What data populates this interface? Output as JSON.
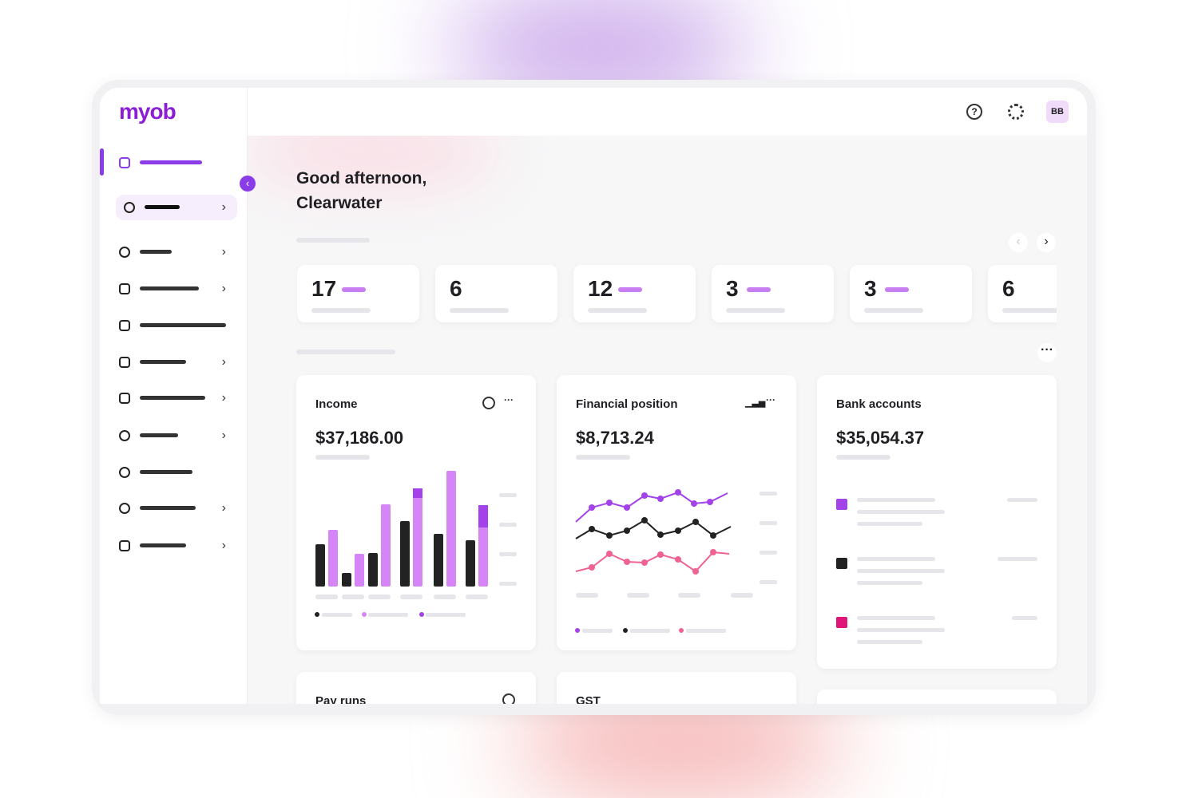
{
  "brand": "myob",
  "user_initials": "BB",
  "greeting": {
    "line1": "Good afternoon,",
    "line2": "Clearwater"
  },
  "stats": [
    "17",
    "6",
    "12",
    "3",
    "3",
    "6"
  ],
  "cards": [
    {
      "title": "Income",
      "amount": "$37,186.00"
    },
    {
      "title": "Financial position",
      "amount": "$8,713.24"
    },
    {
      "title": "Bank accounts",
      "amount": "$35,054.37"
    },
    {
      "title": "Pay runs"
    },
    {
      "title": "GST"
    }
  ]
}
